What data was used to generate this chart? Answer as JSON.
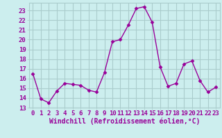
{
  "x": [
    0,
    1,
    2,
    3,
    4,
    5,
    6,
    7,
    8,
    9,
    10,
    11,
    12,
    13,
    14,
    15,
    16,
    17,
    18,
    19,
    20,
    21,
    22,
    23
  ],
  "y": [
    16.5,
    13.9,
    13.5,
    14.7,
    15.5,
    15.4,
    15.3,
    14.8,
    14.6,
    16.6,
    19.8,
    20.0,
    21.5,
    23.2,
    23.4,
    21.8,
    17.2,
    15.2,
    15.5,
    17.5,
    17.8,
    15.8,
    14.6,
    15.1
  ],
  "line_color": "#990099",
  "marker": "D",
  "marker_size": 2.5,
  "bg_color": "#cceeee",
  "grid_color": "#aacccc",
  "xlabel": "Windchill (Refroidissement éolien,°C)",
  "xlabel_color": "#990099",
  "xlabel_fontsize": 7,
  "tick_color": "#990099",
  "tick_fontsize": 6.5,
  "ylim": [
    13,
    23.8
  ],
  "yticks": [
    13,
    14,
    15,
    16,
    17,
    18,
    19,
    20,
    21,
    22,
    23
  ],
  "xticks": [
    0,
    1,
    2,
    3,
    4,
    5,
    6,
    7,
    8,
    9,
    10,
    11,
    12,
    13,
    14,
    15,
    16,
    17,
    18,
    19,
    20,
    21,
    22,
    23
  ]
}
